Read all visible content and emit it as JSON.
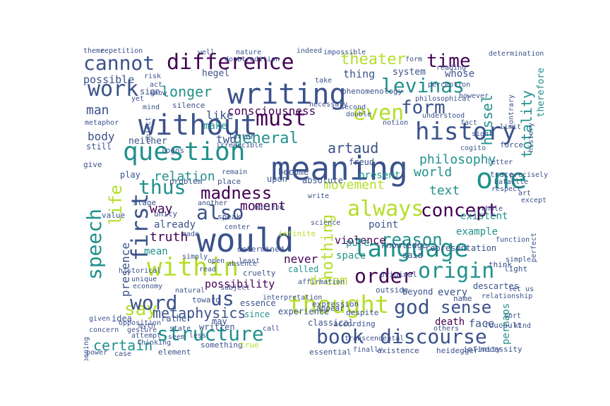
{
  "palette": {
    "dark_purple": "#440154",
    "indigo": "#3b528b",
    "blue": "#31688e",
    "teal": "#21918c",
    "green": "#35b779",
    "lime": "#b5de2b",
    "yellow": "#fde725"
  },
  "words": [
    {
      "text": "would",
      "color": "indigo"
    },
    {
      "text": "meaning",
      "color": "indigo"
    },
    {
      "text": "writing",
      "color": "indigo"
    },
    {
      "text": "difference",
      "color": "dark_purple"
    },
    {
      "text": "without",
      "color": "indigo"
    },
    {
      "text": "question",
      "color": "teal"
    },
    {
      "text": "language",
      "color": "teal"
    },
    {
      "text": "history",
      "color": "indigo"
    },
    {
      "text": "one",
      "color": "teal"
    },
    {
      "text": "thought",
      "color": "lime"
    },
    {
      "text": "within",
      "color": "lime"
    },
    {
      "text": "structure",
      "color": "teal"
    },
    {
      "text": "book",
      "color": "indigo"
    },
    {
      "text": "discourse",
      "color": "indigo"
    },
    {
      "text": "must",
      "color": "dark_purple"
    },
    {
      "text": "levinas",
      "color": "teal"
    },
    {
      "text": "theater",
      "color": "lime"
    },
    {
      "text": "time",
      "color": "dark_purple"
    },
    {
      "text": "cannot",
      "color": "indigo"
    },
    {
      "text": "work",
      "color": "indigo"
    },
    {
      "text": "form",
      "color": "indigo"
    },
    {
      "text": "even",
      "color": "lime"
    },
    {
      "text": "always",
      "color": "lime"
    },
    {
      "text": "concept",
      "color": "dark_purple"
    },
    {
      "text": "origin",
      "color": "teal"
    },
    {
      "text": "order",
      "color": "dark_purple"
    },
    {
      "text": "sense",
      "color": "indigo"
    },
    {
      "text": "god",
      "color": "indigo"
    },
    {
      "text": "say",
      "color": "lime"
    },
    {
      "text": "first",
      "color": "indigo"
    },
    {
      "text": "speech",
      "color": "teal"
    },
    {
      "text": "life",
      "color": "lime"
    },
    {
      "text": "thus",
      "color": "teal"
    },
    {
      "text": "madness",
      "color": "dark_purple"
    },
    {
      "text": "also",
      "color": "indigo"
    },
    {
      "text": "word",
      "color": "indigo"
    },
    {
      "text": "us",
      "color": "indigo"
    },
    {
      "text": "general",
      "color": "teal"
    },
    {
      "text": "reason",
      "color": "teal"
    },
    {
      "text": "philosophy",
      "color": "teal"
    },
    {
      "text": "hussel",
      "color": "teal"
    },
    {
      "text": "totality",
      "color": "teal"
    },
    {
      "text": "artaud",
      "color": "indigo"
    },
    {
      "text": "nothing",
      "color": "lime"
    },
    {
      "text": "metaphysics",
      "color": "indigo"
    },
    {
      "text": "certain",
      "color": "teal"
    },
    {
      "text": "consciousness",
      "color": "dark_purple"
    },
    {
      "text": "longer",
      "color": "teal"
    },
    {
      "text": "like",
      "color": "indigo"
    },
    {
      "text": "possible",
      "color": "indigo"
    },
    {
      "text": "relation",
      "color": "teal"
    },
    {
      "text": "movement",
      "color": "lime"
    },
    {
      "text": "text",
      "color": "teal"
    },
    {
      "text": "world",
      "color": "teal"
    },
    {
      "text": "dream",
      "color": "lime"
    },
    {
      "text": "perhaps",
      "color": "teal"
    },
    {
      "text": "possibility",
      "color": "dark_purple"
    },
    {
      "text": "truth",
      "color": "dark_purple"
    },
    {
      "text": "presence",
      "color": "indigo"
    },
    {
      "text": "moment",
      "color": "dark_purple"
    },
    {
      "text": "never",
      "color": "dark_purple"
    },
    {
      "text": "way",
      "color": "dark_purple"
    },
    {
      "text": "example",
      "color": "teal"
    },
    {
      "text": "existent",
      "color": "teal"
    },
    {
      "text": "violence",
      "color": "dark_purple"
    },
    {
      "text": "face",
      "color": "indigo"
    },
    {
      "text": "death",
      "color": "dark_purple"
    },
    {
      "text": "every",
      "color": "indigo"
    },
    {
      "text": "man",
      "color": "indigo"
    },
    {
      "text": "body",
      "color": "indigo"
    },
    {
      "text": "two",
      "color": "indigo"
    },
    {
      "text": "therefore",
      "color": "teal"
    },
    {
      "text": "thing",
      "color": "indigo"
    },
    {
      "text": "whose",
      "color": "indigo"
    },
    {
      "text": "system",
      "color": "indigo"
    },
    {
      "text": "hegel",
      "color": "indigo"
    },
    {
      "text": "sign",
      "color": "indigo"
    },
    {
      "text": "make",
      "color": "teal"
    },
    {
      "text": "neither",
      "color": "indigo"
    },
    {
      "text": "still",
      "color": "indigo"
    },
    {
      "text": "play",
      "color": "indigo"
    },
    {
      "text": "already",
      "color": "indigo"
    },
    {
      "text": "mean",
      "color": "teal"
    },
    {
      "text": "present",
      "color": "teal"
    },
    {
      "text": "absolute",
      "color": "indigo"
    },
    {
      "text": "freud",
      "color": "indigo"
    },
    {
      "text": "upon",
      "color": "indigo"
    },
    {
      "text": "point",
      "color": "indigo"
    },
    {
      "text": "space",
      "color": "teal"
    },
    {
      "text": "pure",
      "color": "teal"
    },
    {
      "text": "said",
      "color": "indigo"
    },
    {
      "text": "representation",
      "color": "indigo"
    },
    {
      "text": "called",
      "color": "teal"
    },
    {
      "text": "experience",
      "color": "indigo"
    },
    {
      "text": "essence",
      "color": "indigo"
    },
    {
      "text": "since",
      "color": "teal"
    },
    {
      "text": "written",
      "color": "indigo"
    },
    {
      "text": "idea",
      "color": "indigo"
    },
    {
      "text": "rather",
      "color": "indigo"
    },
    {
      "text": "descartes",
      "color": "indigo"
    },
    {
      "text": "foucault",
      "color": "indigo"
    },
    {
      "text": "classical",
      "color": "indigo"
    },
    {
      "text": "according",
      "color": "indigo"
    },
    {
      "text": "existence",
      "color": "indigo"
    },
    {
      "text": "heidegger",
      "color": "indigo"
    },
    {
      "text": "infinity",
      "color": "indigo"
    },
    {
      "text": "necessity",
      "color": "indigo"
    },
    {
      "text": "something",
      "color": "indigo"
    },
    {
      "text": "essential",
      "color": "indigo"
    },
    {
      "text": "element",
      "color": "indigo"
    },
    {
      "text": "true",
      "color": "lime"
    },
    {
      "text": "concern",
      "color": "indigo"
    },
    {
      "text": "given",
      "color": "indigo"
    },
    {
      "text": "opposition",
      "color": "indigo"
    },
    {
      "text": "attempt",
      "color": "indigo"
    },
    {
      "text": "thinking",
      "color": "indigo"
    },
    {
      "text": "beyond",
      "color": "indigo"
    },
    {
      "text": "outside",
      "color": "indigo"
    },
    {
      "text": "despite",
      "color": "indigo"
    },
    {
      "text": "appear",
      "color": "indigo"
    },
    {
      "text": "expression",
      "color": "indigo"
    },
    {
      "text": "interpretation",
      "color": "indigo"
    },
    {
      "text": "cruelty",
      "color": "indigo"
    },
    {
      "text": "determined",
      "color": "indigo"
    },
    {
      "text": "infinite",
      "color": "lime"
    },
    {
      "text": "knowledge",
      "color": "indigo"
    },
    {
      "text": "original",
      "color": "indigo"
    },
    {
      "text": "think",
      "color": "indigo"
    },
    {
      "text": "light",
      "color": "indigo"
    },
    {
      "text": "name",
      "color": "indigo"
    },
    {
      "text": "relationship",
      "color": "indigo"
    },
    {
      "text": "phenomenology",
      "color": "indigo"
    },
    {
      "text": "philosophical",
      "color": "indigo"
    },
    {
      "text": "understood",
      "color": "indigo"
    },
    {
      "text": "fact",
      "color": "indigo"
    },
    {
      "text": "force",
      "color": "indigo"
    },
    {
      "text": "limit",
      "color": "indigo"
    },
    {
      "text": "trace",
      "color": "indigo"
    },
    {
      "text": "letter",
      "color": "indigo"
    },
    {
      "text": "bataille",
      "color": "indigo"
    },
    {
      "text": "become",
      "color": "indigo"
    },
    {
      "text": "logos",
      "color": "indigo"
    },
    {
      "text": "stage",
      "color": "indigo"
    },
    {
      "text": "unity",
      "color": "indigo"
    },
    {
      "text": "speak",
      "color": "indigo"
    },
    {
      "text": "center",
      "color": "indigo"
    },
    {
      "text": "horizon",
      "color": "indigo"
    },
    {
      "text": "another",
      "color": "indigo"
    },
    {
      "text": "remain",
      "color": "indigo"
    },
    {
      "text": "write",
      "color": "indigo"
    },
    {
      "text": "science",
      "color": "indigo"
    },
    {
      "text": "give",
      "color": "indigo"
    },
    {
      "text": "problem",
      "color": "indigo"
    },
    {
      "text": "value",
      "color": "indigo"
    },
    {
      "text": "silence",
      "color": "indigo"
    },
    {
      "text": "act",
      "color": "indigo"
    },
    {
      "text": "know",
      "color": "indigo"
    },
    {
      "text": "object",
      "color": "indigo"
    },
    {
      "text": "yet",
      "color": "indigo"
    },
    {
      "text": "repetition",
      "color": "indigo"
    },
    {
      "text": "theme",
      "color": "indigo"
    },
    {
      "text": "metaphor",
      "color": "indigo"
    },
    {
      "text": "necessary",
      "color": "indigo"
    },
    {
      "text": "take",
      "color": "indigo"
    },
    {
      "text": "impossible",
      "color": "indigo"
    },
    {
      "text": "determination",
      "color": "indigo"
    },
    {
      "text": "contrary",
      "color": "indigo"
    },
    {
      "text": "simple",
      "color": "indigo"
    },
    {
      "text": "place",
      "color": "indigo"
    },
    {
      "text": "least",
      "color": "indigo"
    },
    {
      "text": "toward",
      "color": "indigo"
    },
    {
      "text": "let us",
      "color": "indigo"
    },
    {
      "text": "others",
      "color": "indigo"
    },
    {
      "text": "power",
      "color": "indigo"
    },
    {
      "text": "case",
      "color": "indigo"
    },
    {
      "text": "opening",
      "color": "indigo"
    },
    {
      "text": "finally",
      "color": "indigo"
    },
    {
      "text": "transcendental",
      "color": "indigo"
    },
    {
      "text": "may",
      "color": "indigo"
    },
    {
      "text": "subject",
      "color": "indigo"
    },
    {
      "text": "risk",
      "color": "indigo"
    },
    {
      "text": "mind",
      "color": "indigo"
    },
    {
      "text": "latter",
      "color": "indigo"
    },
    {
      "text": "irreducible",
      "color": "indigo"
    },
    {
      "text": "well",
      "color": "indigo"
    },
    {
      "text": "nature",
      "color": "indigo"
    },
    {
      "text": "doubt",
      "color": "indigo"
    },
    {
      "text": "tradition",
      "color": "indigo"
    },
    {
      "text": "indeed",
      "color": "indigo"
    },
    {
      "text": "second",
      "color": "indigo"
    },
    {
      "text": "double",
      "color": "indigo"
    },
    {
      "text": "notion",
      "color": "indigo"
    },
    {
      "text": "precisely",
      "color": "indigo"
    },
    {
      "text": "respect",
      "color": "indigo"
    },
    {
      "text": "except",
      "color": "indigo"
    },
    {
      "text": "history",
      "color": "indigo"
    },
    {
      "text": "however",
      "color": "indigo"
    },
    {
      "text": "simply",
      "color": "indigo"
    },
    {
      "text": "affirmation",
      "color": "indigo"
    },
    {
      "text": "read",
      "color": "indigo"
    },
    {
      "text": "open",
      "color": "indigo"
    },
    {
      "text": "absence",
      "color": "indigo"
    },
    {
      "text": "state",
      "color": "indigo"
    },
    {
      "text": "less",
      "color": "indigo"
    },
    {
      "text": "seem",
      "color": "indigo"
    },
    {
      "text": "call",
      "color": "indigo"
    },
    {
      "text": "made",
      "color": "indigo"
    },
    {
      "text": "function",
      "color": "indigo"
    },
    {
      "text": "economy",
      "color": "indigo"
    },
    {
      "text": "unique",
      "color": "indigo"
    },
    {
      "text": "gesture",
      "color": "indigo"
    },
    {
      "text": "myth",
      "color": "indigo"
    },
    {
      "text": "natural",
      "color": "indigo"
    },
    {
      "text": "historical",
      "color": "indigo"
    },
    {
      "text": "perception",
      "color": "indigo"
    },
    {
      "text": "reading",
      "color": "indigo"
    },
    {
      "text": "form",
      "color": "indigo"
    },
    {
      "text": "cogito",
      "color": "indigo"
    },
    {
      "text": "sight",
      "color": "indigo"
    },
    {
      "text": "whole",
      "color": "indigo"
    },
    {
      "text": "perfect",
      "color": "indigo"
    },
    {
      "text": "kind",
      "color": "indigo"
    },
    {
      "text": "art",
      "color": "indigo"
    },
    {
      "text": "sort",
      "color": "indigo"
    }
  ]
}
